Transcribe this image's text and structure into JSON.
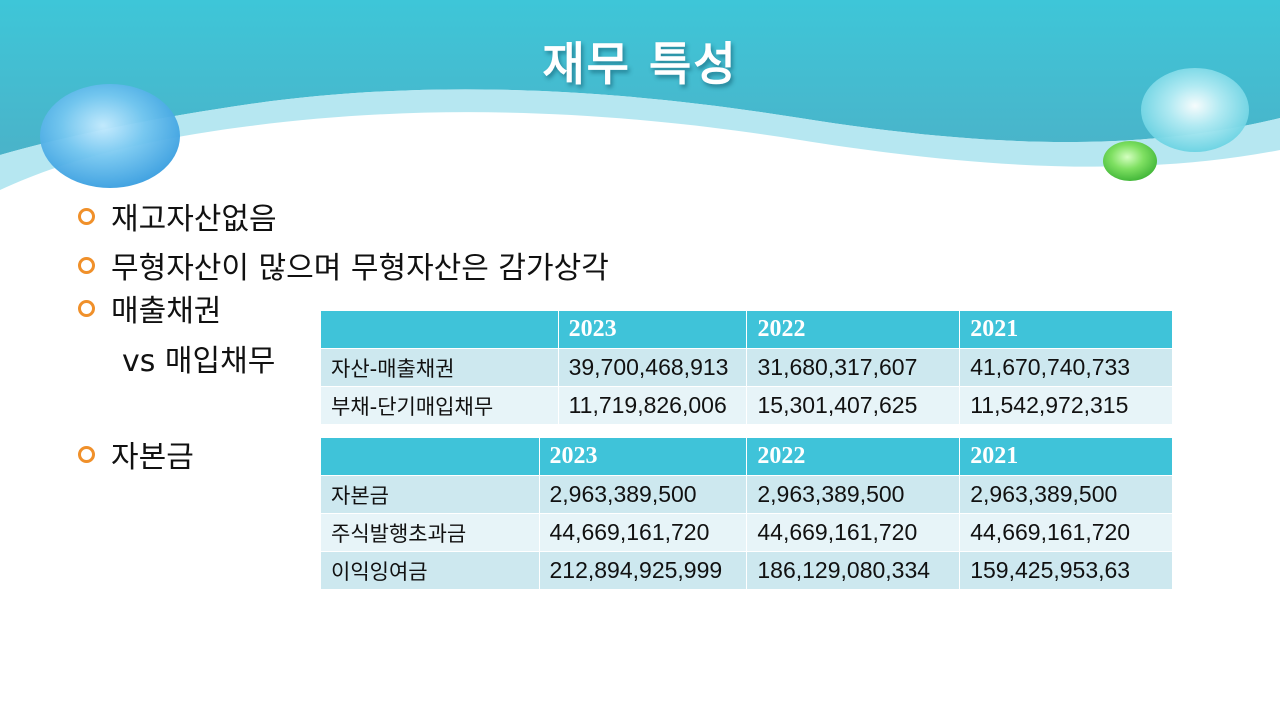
{
  "slide": {
    "title": "재무 특성"
  },
  "bullets": {
    "inventory": "재고자산없음",
    "intangibles": "무형자산이 많으며 무형자산은 감가상각",
    "receivables": "매출채권",
    "receivables_sub": "vs 매입채무",
    "capital": "자본금"
  },
  "table1": {
    "headers": [
      "",
      "2023",
      "2022",
      "2021"
    ],
    "rows": [
      {
        "label": "자산-매출채권",
        "values": [
          "39,700,468,913",
          "31,680,317,607",
          "41,670,740,733"
        ]
      },
      {
        "label": "부채-단기매입채무",
        "values": [
          "11,719,826,006",
          "15,301,407,625",
          "11,542,972,315"
        ]
      }
    ]
  },
  "table2": {
    "headers": [
      "",
      "2023",
      "2022",
      "2021"
    ],
    "rows": [
      {
        "label": "자본금",
        "values": [
          "2,963,389,500",
          "2,963,389,500",
          "2,963,389,500"
        ]
      },
      {
        "label": "주식발행초과금",
        "values": [
          "44,669,161,720",
          "44,669,161,720",
          "44,669,161,720"
        ]
      },
      {
        "label": "이익잉여금",
        "values": [
          "212,894,925,999",
          "186,129,080,334",
          "159,425,953,63"
        ]
      }
    ]
  },
  "colors": {
    "header_teal": "#3fc3d9",
    "bullet_orange": "#f0902a",
    "row_dark": "#cde8ef",
    "row_light": "#e7f4f8"
  }
}
